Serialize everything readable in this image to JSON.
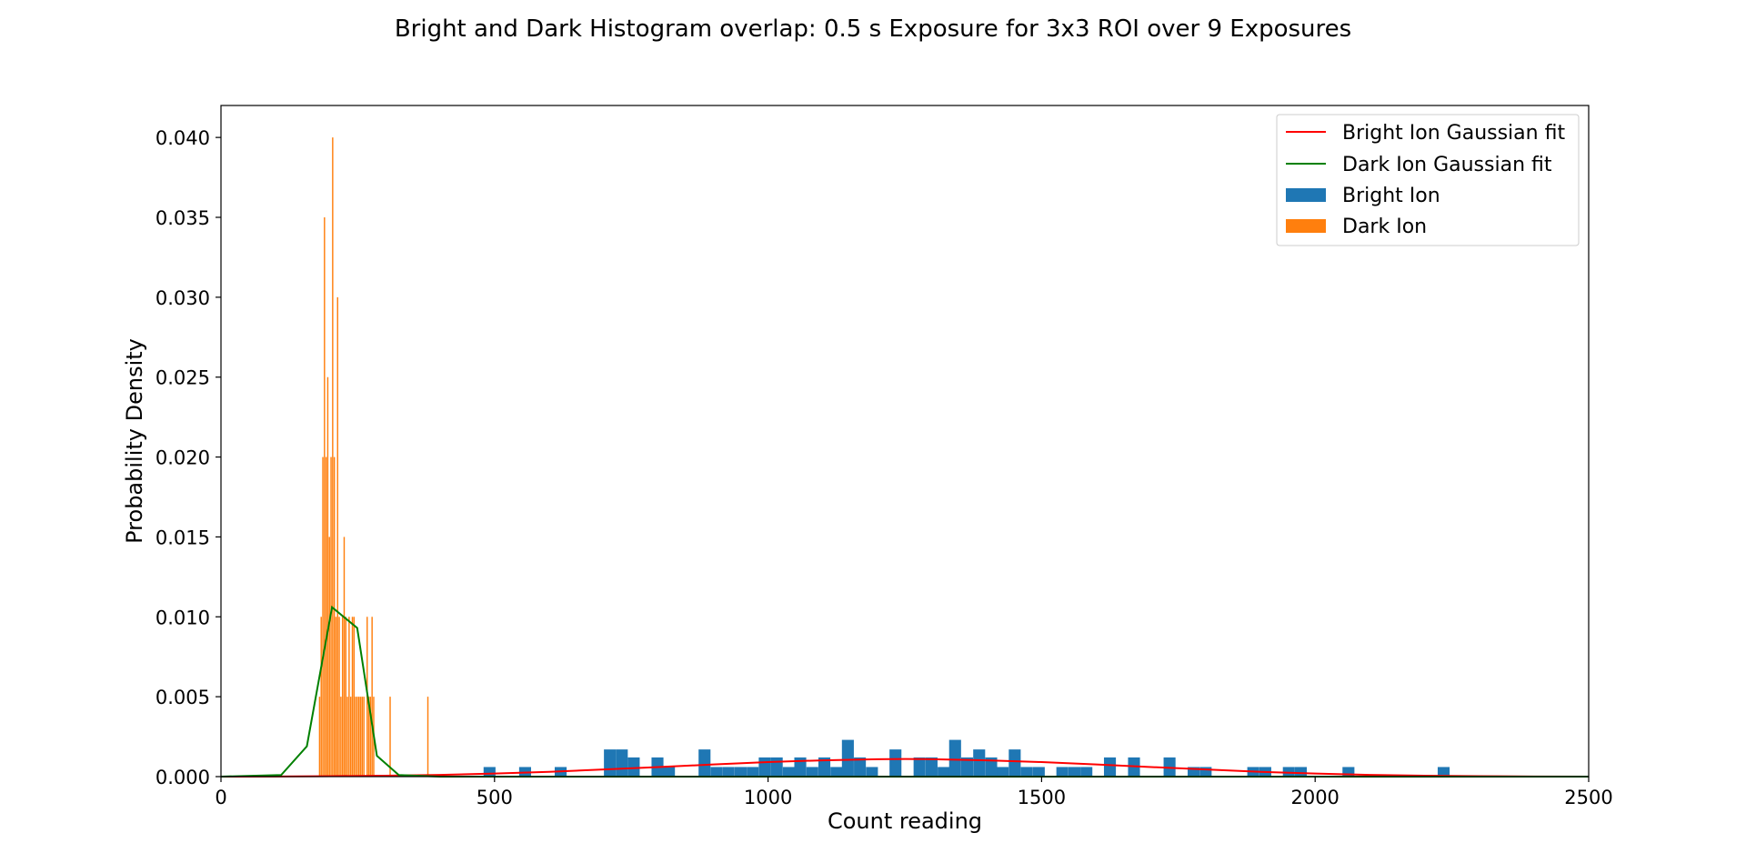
{
  "chart_data": {
    "type": "bar",
    "title": "Bright and Dark Histogram overlap: 0.5 s Exposure for 3x3 ROI over 9 Exposures",
    "xlabel": "Count reading",
    "ylabel": "Probability Density",
    "xlim": [
      0,
      2500
    ],
    "ylim": [
      0,
      0.042
    ],
    "xticks": [
      "0",
      "500",
      "1000",
      "1500",
      "2000",
      "2500"
    ],
    "yticks": [
      "0.000",
      "0.005",
      "0.010",
      "0.015",
      "0.020",
      "0.025",
      "0.030",
      "0.035",
      "0.040"
    ],
    "grid": false,
    "legend_position": "top-right",
    "legend": [
      "Bright Ion Gaussian fit",
      "Dark Ion Gaussian fit",
      "Bright Ion",
      "Dark Ion"
    ],
    "colors": {
      "bright_hist": "#1f77b4",
      "dark_hist": "#ff7f0e",
      "bright_fit": "#ff0000",
      "dark_fit": "#008000"
    },
    "bright_bin_width": 21.8,
    "bright_hist": [
      [
        480,
        0.0006
      ],
      [
        545,
        0.0006
      ],
      [
        610,
        0.0006
      ],
      [
        700,
        0.0017
      ],
      [
        721.8,
        0.0017
      ],
      [
        743.6,
        0.0012
      ],
      [
        787,
        0.0012
      ],
      [
        808,
        0.0006
      ],
      [
        873,
        0.0017
      ],
      [
        895,
        0.0006
      ],
      [
        917,
        0.0006
      ],
      [
        939,
        0.0006
      ],
      [
        961,
        0.0006
      ],
      [
        983,
        0.0012
      ],
      [
        1005,
        0.0012
      ],
      [
        1027,
        0.0006
      ],
      [
        1048,
        0.0012
      ],
      [
        1070,
        0.0006
      ],
      [
        1092,
        0.0012
      ],
      [
        1114,
        0.0006
      ],
      [
        1135,
        0.0023
      ],
      [
        1157,
        0.0012
      ],
      [
        1179,
        0.0006
      ],
      [
        1222,
        0.0017
      ],
      [
        1266,
        0.0012
      ],
      [
        1288,
        0.0012
      ],
      [
        1310,
        0.0006
      ],
      [
        1331,
        0.0023
      ],
      [
        1353,
        0.0012
      ],
      [
        1375,
        0.0017
      ],
      [
        1397,
        0.0012
      ],
      [
        1418,
        0.0006
      ],
      [
        1440,
        0.0017
      ],
      [
        1462,
        0.0006
      ],
      [
        1484,
        0.0006
      ],
      [
        1527,
        0.0006
      ],
      [
        1549,
        0.0006
      ],
      [
        1571,
        0.0006
      ],
      [
        1614,
        0.0012
      ],
      [
        1658,
        0.0012
      ],
      [
        1723,
        0.0012
      ],
      [
        1767,
        0.0006
      ],
      [
        1789,
        0.0006
      ],
      [
        1876,
        0.0006
      ],
      [
        1898,
        0.0006
      ],
      [
        1941,
        0.0006
      ],
      [
        1963,
        0.0006
      ],
      [
        2050,
        0.0006
      ],
      [
        2224,
        0.0006
      ]
    ],
    "dark_bin_width": 2.4,
    "dark_hist": [
      [
        179,
        0.005
      ],
      [
        182,
        0.01
      ],
      [
        185,
        0.02
      ],
      [
        188,
        0.035
      ],
      [
        191,
        0.02
      ],
      [
        194,
        0.025
      ],
      [
        197,
        0.015
      ],
      [
        200,
        0.02
      ],
      [
        203,
        0.04
      ],
      [
        206,
        0.02
      ],
      [
        209,
        0.01
      ],
      [
        212,
        0.03
      ],
      [
        215,
        0.01
      ],
      [
        218,
        0.005
      ],
      [
        221,
        0.01
      ],
      [
        224,
        0.015
      ],
      [
        227,
        0.01
      ],
      [
        230,
        0.005
      ],
      [
        233,
        0.01
      ],
      [
        236,
        0.005
      ],
      [
        239,
        0.01
      ],
      [
        242,
        0.01
      ],
      [
        245,
        0.005
      ],
      [
        248,
        0.005
      ],
      [
        251,
        0.005
      ],
      [
        254,
        0.005
      ],
      [
        257,
        0.005
      ],
      [
        260,
        0.005
      ],
      [
        266,
        0.01
      ],
      [
        269,
        0.005
      ],
      [
        272,
        0.005
      ],
      [
        275,
        0.01
      ],
      [
        278,
        0.005
      ],
      [
        308,
        0.005
      ],
      [
        377,
        0.005
      ]
    ],
    "bright_fit": [
      [
        0,
        0.0
      ],
      [
        100,
        1e-05
      ],
      [
        200,
        3e-05
      ],
      [
        300,
        6e-05
      ],
      [
        400,
        0.00011
      ],
      [
        500,
        0.00019
      ],
      [
        600,
        0.0003
      ],
      [
        700,
        0.00045
      ],
      [
        800,
        0.0006
      ],
      [
        900,
        0.00076
      ],
      [
        1000,
        0.00091
      ],
      [
        1100,
        0.00102
      ],
      [
        1200,
        0.00109
      ],
      [
        1250,
        0.0011
      ],
      [
        1300,
        0.00109
      ],
      [
        1400,
        0.00102
      ],
      [
        1500,
        0.00091
      ],
      [
        1600,
        0.00076
      ],
      [
        1700,
        0.0006
      ],
      [
        1800,
        0.00045
      ],
      [
        1900,
        0.0003
      ],
      [
        2000,
        0.00019
      ],
      [
        2100,
        0.00011
      ],
      [
        2200,
        6e-05
      ],
      [
        2300,
        3e-05
      ],
      [
        2400,
        1e-05
      ],
      [
        2500,
        0.0
      ]
    ],
    "dark_fit": [
      [
        0,
        0.0
      ],
      [
        110,
        0.0001
      ],
      [
        157,
        0.0019
      ],
      [
        203,
        0.0106
      ],
      [
        249,
        0.0093
      ],
      [
        285,
        0.0013
      ],
      [
        325,
        0.0001
      ],
      [
        400,
        0.0
      ],
      [
        2500,
        0.0
      ]
    ]
  }
}
